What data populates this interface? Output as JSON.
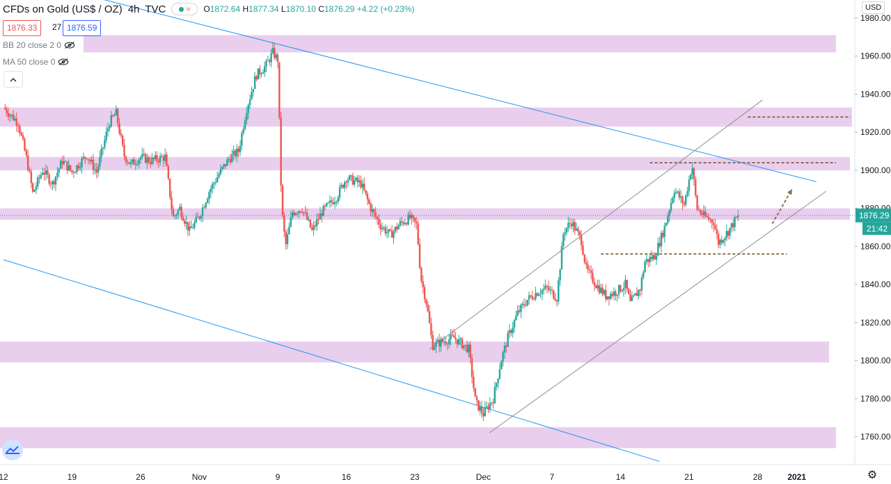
{
  "header": {
    "title": "CFDs on Gold (US$ / OZ)",
    "interval": "4h",
    "exchange": "TVC",
    "waves": "≈",
    "open_label": "O",
    "open": "1872.64",
    "high_label": "H",
    "high": "1877.34",
    "low_label": "L",
    "low": "1870.10",
    "close_label": "C",
    "close": "1876.29",
    "change": "+4.22 (+0.23%)"
  },
  "quote": {
    "bid": "1876.33",
    "spread": "27",
    "ask": "1876.59"
  },
  "indicators": [
    {
      "label": "BB 20 close 2 0"
    },
    {
      "label": "MA 50 close 0"
    }
  ],
  "collapse_icon": "chevron-up-icon",
  "currency": "USD",
  "current_price": "1876.29",
  "countdown": "21:42",
  "colors": {
    "up": "#26a69a",
    "down": "#ef5350",
    "zone": "#e1bee7",
    "trendline": "#2196f3",
    "channel": "#8d8d8d",
    "dashed": "#8b6d4f"
  },
  "chart_data": {
    "type": "candlestick",
    "symbol": "CFDs on Gold (US$ / OZ)",
    "timeframe": "4h",
    "y_axis": {
      "ticks": [
        1760,
        1780,
        1800,
        1820,
        1840,
        1860,
        1880,
        1900,
        1920,
        1940,
        1960,
        1980
      ],
      "tick_labels": [
        "1760.00",
        "1780.00",
        "1800.00",
        "1820.00",
        "1840.00",
        "1860.00",
        "1880.00",
        "1900.00",
        "1920.00",
        "1940.00",
        "1960.00",
        "1980.00"
      ],
      "range": [
        1748,
        1986
      ]
    },
    "x_axis": {
      "tick_labels": [
        "12",
        "19",
        "26",
        "Nov",
        "9",
        "16",
        "23",
        "Dec",
        "7",
        "14",
        "21",
        "28",
        "2021"
      ],
      "tick_days": [
        0,
        7,
        14,
        20,
        28,
        35,
        42,
        49,
        56,
        63,
        70,
        77,
        81
      ],
      "range_days": [
        0,
        84
      ]
    },
    "path_points": [
      [
        0,
        1933
      ],
      [
        1.5,
        1925
      ],
      [
        2.4,
        1905
      ],
      [
        3.0,
        1888
      ],
      [
        4.0,
        1900
      ],
      [
        5.0,
        1893
      ],
      [
        6.0,
        1905
      ],
      [
        7.0,
        1899
      ],
      [
        8.5,
        1908
      ],
      [
        9.5,
        1899
      ],
      [
        10.8,
        1925
      ],
      [
        11.5,
        1930
      ],
      [
        12.3,
        1908
      ],
      [
        13.0,
        1903
      ],
      [
        14.0,
        1907
      ],
      [
        15.0,
        1905
      ],
      [
        16.5,
        1907
      ],
      [
        17.3,
        1875
      ],
      [
        18.0,
        1880
      ],
      [
        19.0,
        1868
      ],
      [
        20.0,
        1876
      ],
      [
        21.0,
        1889
      ],
      [
        22.0,
        1898
      ],
      [
        23.0,
        1906
      ],
      [
        24.0,
        1910
      ],
      [
        24.8,
        1932
      ],
      [
        25.8,
        1950
      ],
      [
        26.8,
        1955
      ],
      [
        27.5,
        1962
      ],
      [
        28.0,
        1958
      ],
      [
        28.4,
        1880
      ],
      [
        28.8,
        1860
      ],
      [
        29.5,
        1878
      ],
      [
        30.5,
        1880
      ],
      [
        31.5,
        1868
      ],
      [
        32.5,
        1878
      ],
      [
        34.0,
        1886
      ],
      [
        35.0,
        1896
      ],
      [
        36.5,
        1893
      ],
      [
        37.5,
        1880
      ],
      [
        38.5,
        1871
      ],
      [
        39.5,
        1866
      ],
      [
        40.5,
        1872
      ],
      [
        41.5,
        1875
      ],
      [
        42.2,
        1871
      ],
      [
        42.6,
        1844
      ],
      [
        43.2,
        1830
      ],
      [
        43.8,
        1808
      ],
      [
        44.8,
        1810
      ],
      [
        46.0,
        1812
      ],
      [
        47.5,
        1806
      ],
      [
        48.2,
        1778
      ],
      [
        49.0,
        1772
      ],
      [
        50.0,
        1780
      ],
      [
        50.8,
        1800
      ],
      [
        51.5,
        1812
      ],
      [
        52.5,
        1825
      ],
      [
        53.5,
        1832
      ],
      [
        54.5,
        1836
      ],
      [
        55.5,
        1838
      ],
      [
        56.5,
        1833
      ],
      [
        57.2,
        1868
      ],
      [
        58.0,
        1873
      ],
      [
        59.0,
        1863
      ],
      [
        59.5,
        1848
      ],
      [
        60.5,
        1840
      ],
      [
        61.5,
        1834
      ],
      [
        62.5,
        1836
      ],
      [
        63.5,
        1840
      ],
      [
        64.0,
        1830
      ],
      [
        65.0,
        1838
      ],
      [
        65.5,
        1852
      ],
      [
        66.5,
        1855
      ],
      [
        67.5,
        1870
      ],
      [
        68.5,
        1890
      ],
      [
        69.5,
        1882
      ],
      [
        70.3,
        1903
      ],
      [
        70.8,
        1880
      ],
      [
        71.5,
        1876
      ],
      [
        72.5,
        1873
      ],
      [
        73.0,
        1862
      ],
      [
        74.0,
        1868
      ],
      [
        75.0,
        1876
      ]
    ],
    "zones": [
      {
        "from": 1962,
        "to": 1971
      },
      {
        "from": 1923,
        "to": 1933
      },
      {
        "from": 1900,
        "to": 1907
      },
      {
        "from": 1874,
        "to": 1880
      },
      {
        "from": 1799,
        "to": 1810
      },
      {
        "from": 1754,
        "to": 1765
      }
    ],
    "trendlines": [
      {
        "kind": "upper",
        "from": [
          10.0,
          1990
        ],
        "to": [
          83,
          1894
        ]
      },
      {
        "kind": "lower",
        "from": [
          0,
          1853
        ],
        "to": [
          67,
          1747
        ]
      }
    ],
    "channel": [
      {
        "from": [
          43.5,
          1806
        ],
        "to": [
          77.5,
          1937
        ]
      },
      {
        "from": [
          49.6,
          1762
        ],
        "to": [
          84,
          1889
        ]
      }
    ],
    "dashed_levels": [
      {
        "y": 1928,
        "from": 76,
        "to": 86.5
      },
      {
        "y": 1904,
        "from": 66,
        "to": 85
      },
      {
        "y": 1856,
        "from": 61,
        "to": 80
      }
    ],
    "projection_arrow": {
      "from": [
        78.5,
        1872
      ],
      "to": [
        80.5,
        1890
      ]
    },
    "last_price": 1876.29
  }
}
